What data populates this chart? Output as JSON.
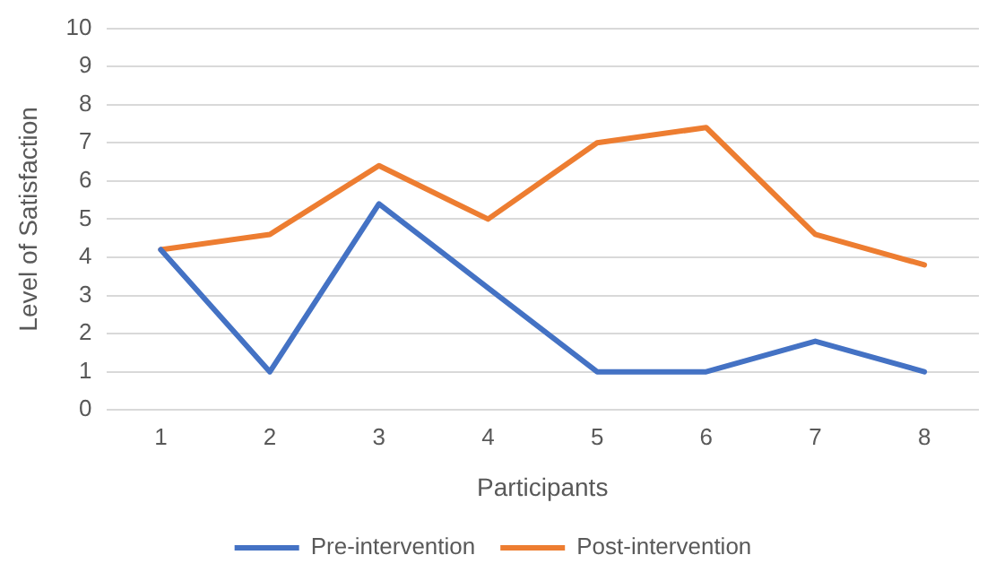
{
  "chart_data": {
    "type": "line",
    "xlabel": "Participants",
    "ylabel": "Level of Satisfaction",
    "categories": [
      "1",
      "2",
      "3",
      "4",
      "5",
      "6",
      "7",
      "8"
    ],
    "series": [
      {
        "name": "Pre-intervention",
        "color": "#4472c4",
        "values": [
          4.2,
          1,
          5.4,
          3.2,
          1,
          1,
          1.8,
          1
        ]
      },
      {
        "name": "Post-intervention",
        "color": "#ed7d31",
        "values": [
          4.2,
          4.6,
          6.4,
          5,
          7,
          7.4,
          4.6,
          3.8
        ]
      }
    ],
    "ylim": [
      0,
      10
    ],
    "yticks": [
      0,
      1,
      2,
      3,
      4,
      5,
      6,
      7,
      8,
      9,
      10
    ],
    "grid": "y",
    "legend": "bottom",
    "marker": "none",
    "line_style": "solid"
  }
}
